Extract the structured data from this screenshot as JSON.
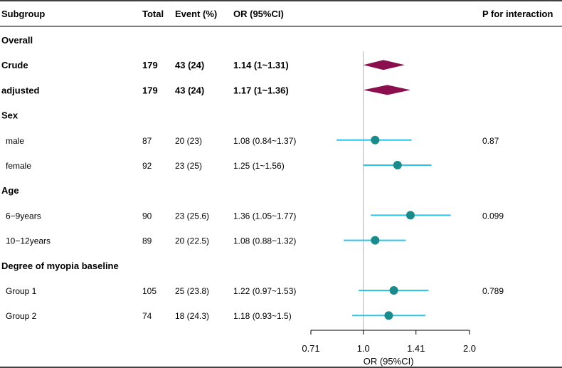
{
  "columns": {
    "subgroup": "Subgroup",
    "total": "Total",
    "event": "Event (%)",
    "or": "OR (95%CI)",
    "p": "P for interaction"
  },
  "colors": {
    "diamond": "#8b0f4e",
    "point": "#1a8a8a",
    "ci_line": "#29c4ea",
    "ref_line": "#b0b0b0",
    "rule": "#000000"
  },
  "chart_data": {
    "type": "forest",
    "rows": [
      {
        "label": "Overall",
        "kind": "header"
      },
      {
        "label": "Crude",
        "kind": "summary",
        "total": "179",
        "event": "43 (24)",
        "or_text": "1.14 (1~1.31)",
        "or": 1.14,
        "lo": 1.0,
        "hi": 1.31,
        "p": ""
      },
      {
        "label": "adjusted",
        "kind": "summary",
        "total": "179",
        "event": "43 (24)",
        "or_text": "1.17 (1~1.36)",
        "or": 1.17,
        "lo": 1.0,
        "hi": 1.36,
        "p": ""
      },
      {
        "label": "Sex",
        "kind": "header"
      },
      {
        "label": "male",
        "kind": "item",
        "total": "87",
        "event": "20 (23)",
        "or_text": "1.08 (0.84~1.37)",
        "or": 1.08,
        "lo": 0.84,
        "hi": 1.37,
        "p": "0.87"
      },
      {
        "label": "female",
        "kind": "item",
        "total": "92",
        "event": "23 (25)",
        "or_text": "1.25 (1~1.56)",
        "or": 1.25,
        "lo": 1.0,
        "hi": 1.56,
        "p": ""
      },
      {
        "label": "Age",
        "kind": "header"
      },
      {
        "label": "6−9years",
        "kind": "item",
        "total": "90",
        "event": "23 (25.6)",
        "or_text": "1.36 (1.05~1.77)",
        "or": 1.36,
        "lo": 1.05,
        "hi": 1.77,
        "p": "0.099"
      },
      {
        "label": "10−12years",
        "kind": "item",
        "total": "89",
        "event": "20 (22.5)",
        "or_text": "1.08 (0.88~1.32)",
        "or": 1.08,
        "lo": 0.88,
        "hi": 1.32,
        "p": ""
      },
      {
        "label": "Degree of myopia baseline",
        "kind": "header"
      },
      {
        "label": "Group 1",
        "kind": "item",
        "total": "105",
        "event": "25 (23.8)",
        "or_text": "1.22 (0.97~1.53)",
        "or": 1.22,
        "lo": 0.97,
        "hi": 1.53,
        "p": "0.789"
      },
      {
        "label": "Group 2",
        "kind": "item",
        "total": "74",
        "event": "18 (24.3)",
        "or_text": "1.18 (0.93~1.5)",
        "or": 1.18,
        "lo": 0.93,
        "hi": 1.5,
        "p": ""
      }
    ],
    "x_axis": {
      "scale": "log",
      "ticks": [
        0.71,
        1.0,
        1.41,
        2.0
      ],
      "tick_labels": [
        "0.71",
        "1.0",
        "1.41",
        "2.0"
      ],
      "label": "OR (95%CI)",
      "reference": 1.0
    }
  }
}
